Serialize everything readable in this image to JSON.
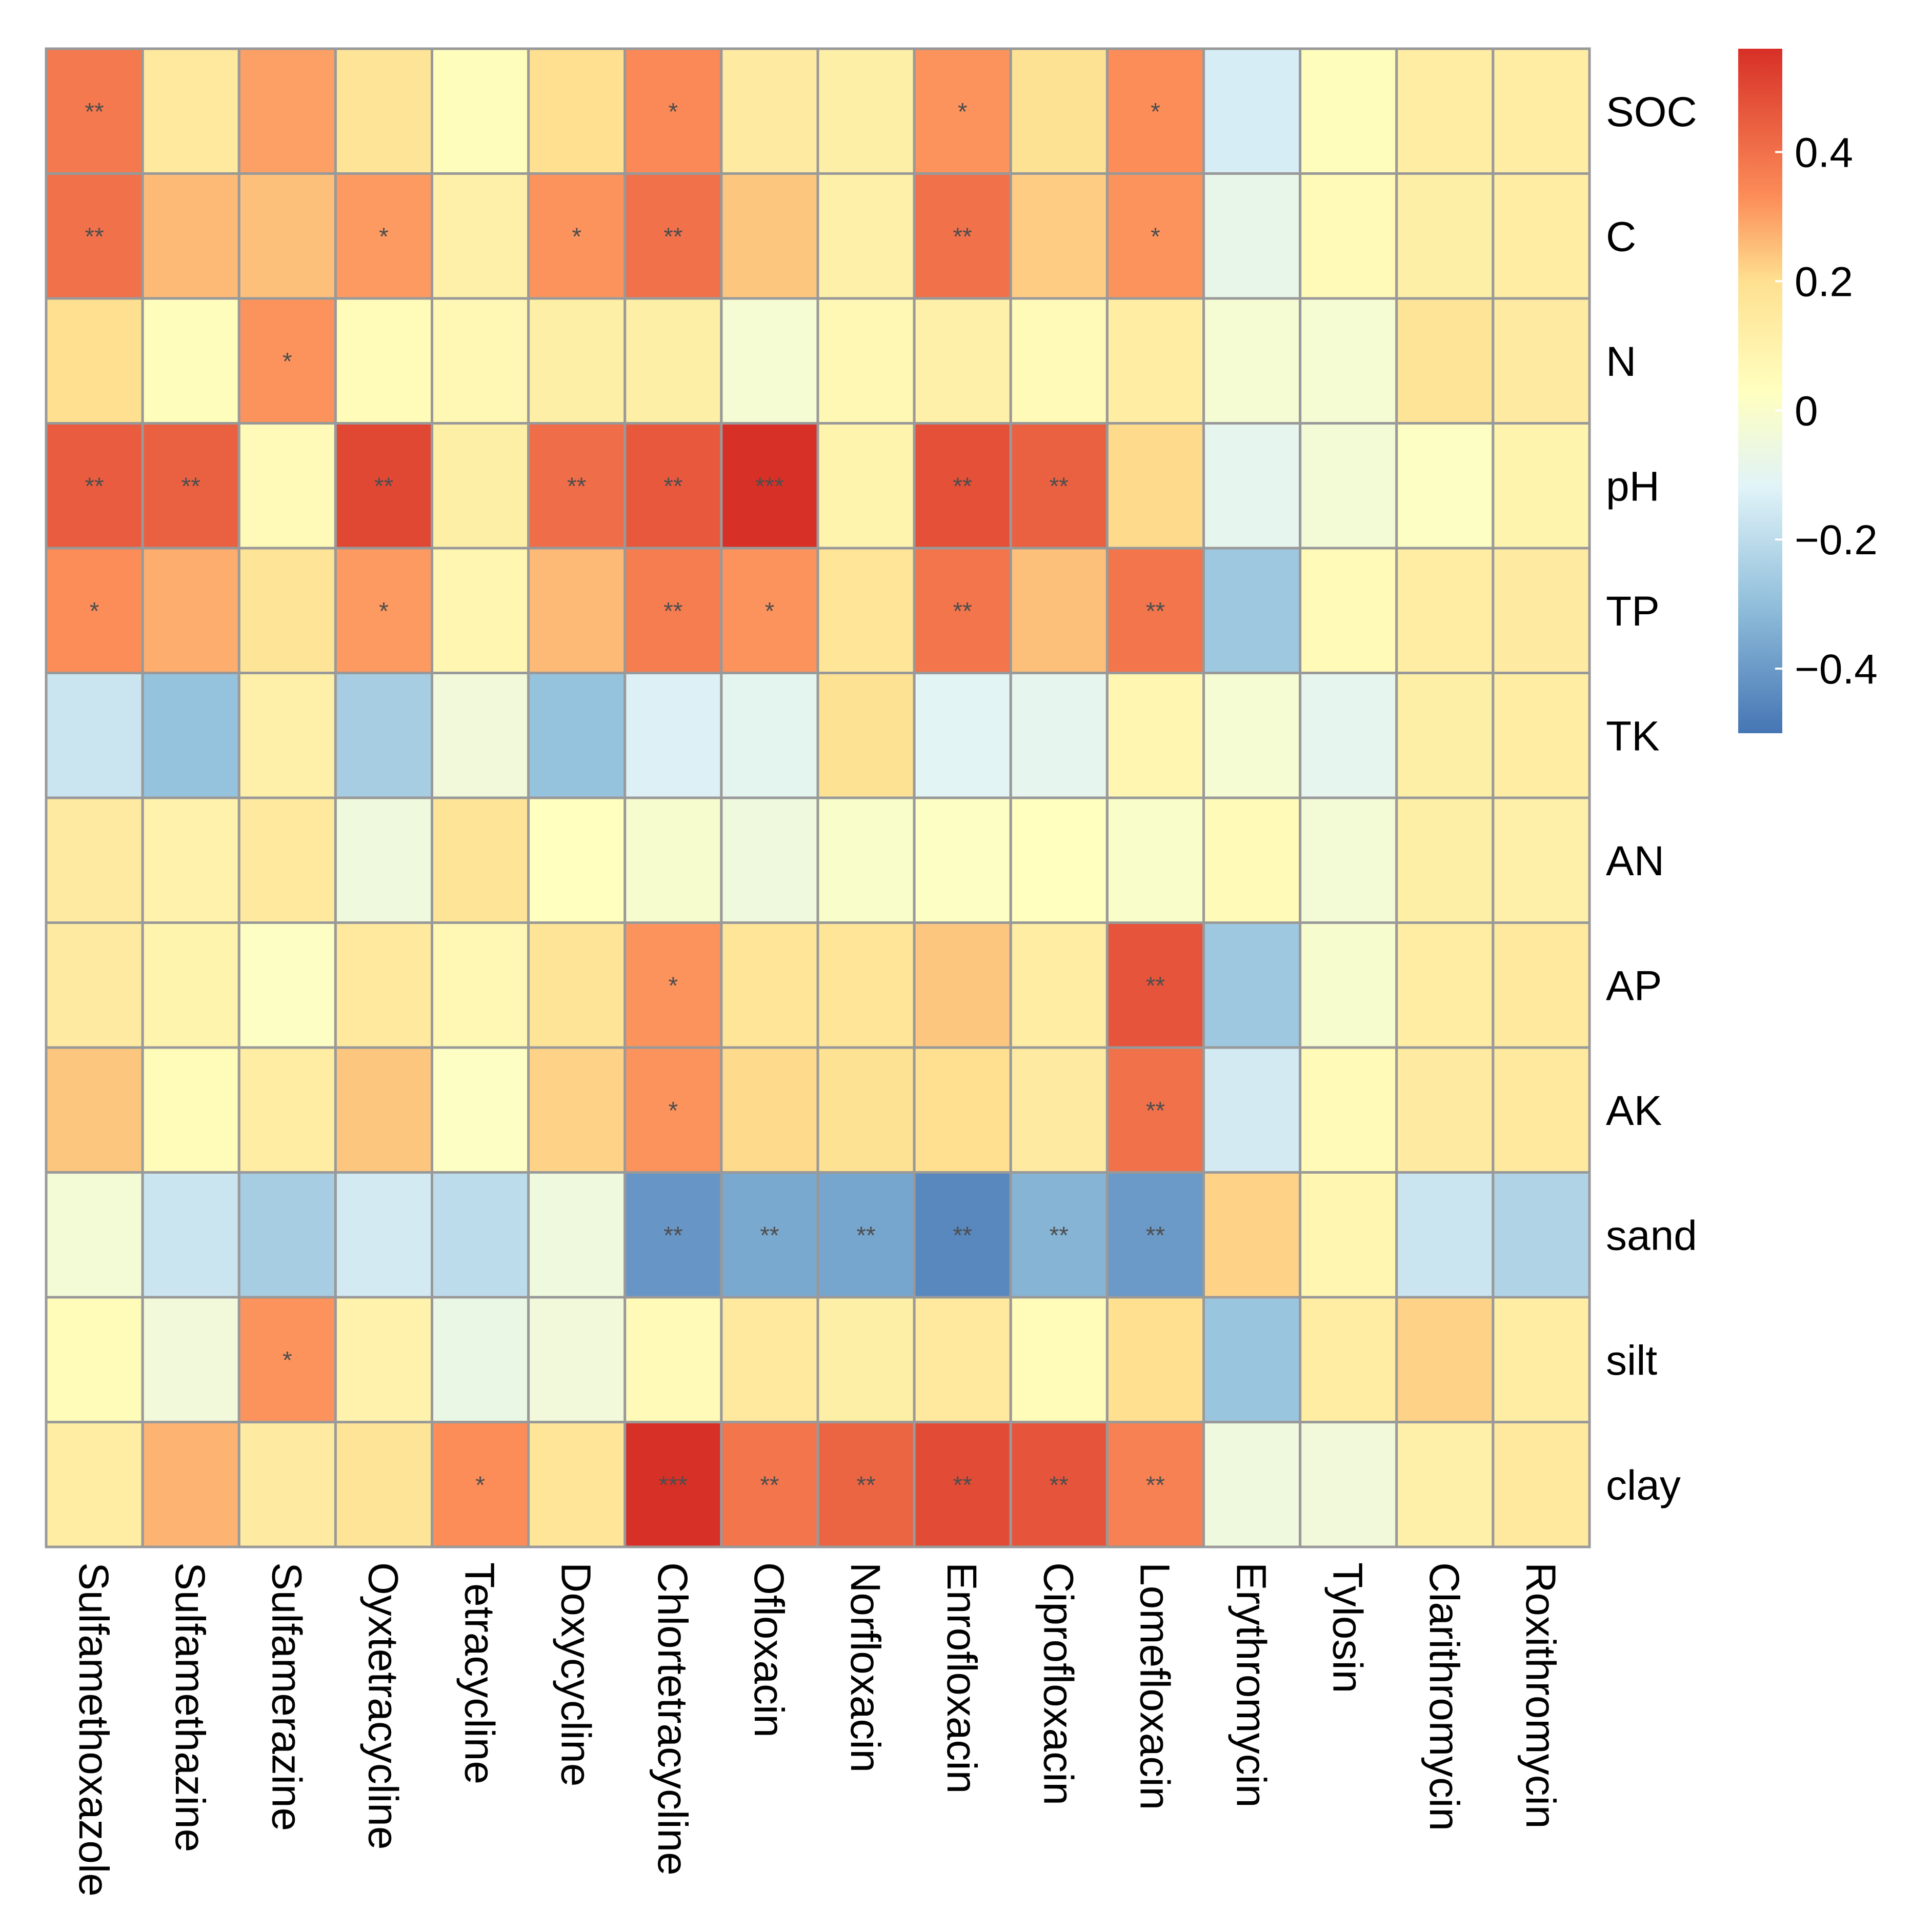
{
  "chart_data": {
    "type": "heatmap",
    "title": "",
    "rows": [
      "SOC",
      "C",
      "N",
      "pH",
      "TP",
      "TK",
      "AN",
      "AP",
      "AK",
      "sand",
      "silt",
      "clay"
    ],
    "columns": [
      "Sulfamethoxazole",
      "Sulfamethazine",
      "Sulfamerazine",
      "Oyxtetracycline",
      "Tetracycline",
      "Doxycycline",
      "Chlortetracycline",
      "Ofloxacin",
      "Norfloxacin",
      "Enrofloxacin",
      "Ciprofloxacin",
      "Lomefloxacin",
      "Erythromycin",
      "Tylosin",
      "Clarithromycin",
      "Roxithromycin"
    ],
    "values": [
      [
        0.38,
        0.15,
        0.3,
        0.18,
        0.04,
        0.2,
        0.34,
        0.14,
        0.12,
        0.32,
        0.19,
        0.33,
        -0.14,
        0.04,
        0.13,
        0.13
      ],
      [
        0.4,
        0.26,
        0.25,
        0.31,
        0.11,
        0.32,
        0.4,
        0.24,
        0.11,
        0.4,
        0.23,
        0.32,
        -0.08,
        0.06,
        0.12,
        0.13
      ],
      [
        0.2,
        0.04,
        0.32,
        0.05,
        0.07,
        0.12,
        0.12,
        -0.02,
        0.07,
        0.11,
        0.06,
        0.13,
        -0.02,
        -0.02,
        0.18,
        0.14
      ],
      [
        0.45,
        0.44,
        0.06,
        0.5,
        0.12,
        0.41,
        0.46,
        0.56,
        0.09,
        0.48,
        0.44,
        0.21,
        -0.09,
        -0.03,
        0.02,
        0.09
      ],
      [
        0.33,
        0.28,
        0.18,
        0.31,
        0.08,
        0.26,
        0.37,
        0.32,
        0.17,
        0.39,
        0.25,
        0.39,
        -0.27,
        0.06,
        0.13,
        0.14
      ],
      [
        -0.17,
        -0.29,
        0.11,
        -0.25,
        -0.04,
        -0.29,
        -0.13,
        -0.1,
        0.19,
        -0.11,
        -0.09,
        0.08,
        -0.02,
        -0.09,
        0.12,
        0.13
      ],
      [
        0.14,
        0.1,
        0.15,
        -0.05,
        0.18,
        0.03,
        -0.01,
        -0.05,
        0.0,
        0.02,
        0.03,
        0.0,
        0.06,
        -0.03,
        0.12,
        0.11
      ],
      [
        0.14,
        0.09,
        0.02,
        0.15,
        0.07,
        0.18,
        0.32,
        0.17,
        0.17,
        0.24,
        0.13,
        0.47,
        -0.27,
        -0.01,
        0.13,
        0.15
      ],
      [
        0.24,
        0.05,
        0.13,
        0.24,
        0.02,
        0.22,
        0.32,
        0.21,
        0.19,
        0.2,
        0.14,
        0.4,
        -0.15,
        0.06,
        0.14,
        0.15
      ],
      [
        -0.03,
        -0.17,
        -0.25,
        -0.15,
        -0.2,
        -0.05,
        -0.41,
        -0.36,
        -0.37,
        -0.45,
        -0.33,
        -0.4,
        0.22,
        0.08,
        -0.17,
        -0.23
      ],
      [
        0.05,
        -0.04,
        0.32,
        0.1,
        -0.07,
        -0.04,
        0.06,
        0.15,
        0.12,
        0.15,
        0.05,
        0.2,
        -0.28,
        0.13,
        0.22,
        0.13
      ],
      [
        0.13,
        0.27,
        0.14,
        0.18,
        0.33,
        0.17,
        0.56,
        0.39,
        0.43,
        0.49,
        0.47,
        0.36,
        -0.05,
        -0.04,
        0.11,
        0.15
      ]
    ],
    "significance": [
      [
        "**",
        "",
        "",
        "",
        "",
        "",
        "*",
        "",
        "",
        "*",
        "",
        "*",
        "",
        "",
        "",
        ""
      ],
      [
        "**",
        "",
        "",
        "*",
        "",
        "*",
        "**",
        "",
        "",
        "**",
        "",
        "*",
        "",
        "",
        "",
        ""
      ],
      [
        "",
        "",
        "*",
        "",
        "",
        "",
        "",
        "",
        "",
        "",
        "",
        "",
        "",
        "",
        "",
        ""
      ],
      [
        "**",
        "**",
        "",
        "**",
        "",
        "**",
        "**",
        "***",
        "",
        "**",
        "**",
        "",
        "",
        "",
        "",
        ""
      ],
      [
        "*",
        "",
        "",
        "*",
        "",
        "",
        "**",
        "*",
        "",
        "**",
        "",
        "**",
        "",
        "",
        "",
        ""
      ],
      [
        "",
        "",
        "",
        "",
        "",
        "",
        "",
        "",
        "",
        "",
        "",
        "",
        "",
        "",
        "",
        ""
      ],
      [
        "",
        "",
        "",
        "",
        "",
        "",
        "",
        "",
        "",
        "",
        "",
        "",
        "",
        "",
        "",
        ""
      ],
      [
        "",
        "",
        "",
        "",
        "",
        "",
        "*",
        "",
        "",
        "",
        "",
        "**",
        "",
        "",
        "",
        ""
      ],
      [
        "",
        "",
        "",
        "",
        "",
        "",
        "*",
        "",
        "",
        "",
        "",
        "**",
        "",
        "",
        "",
        ""
      ],
      [
        "",
        "",
        "",
        "",
        "",
        "",
        "**",
        "**",
        "**",
        "**",
        "**",
        "**",
        "",
        "",
        "",
        ""
      ],
      [
        "",
        "",
        "*",
        "",
        "",
        "",
        "",
        "",
        "",
        "",
        "",
        "",
        "",
        "",
        "",
        ""
      ],
      [
        "",
        "",
        "",
        "",
        "*",
        "",
        "***",
        "**",
        "**",
        "**",
        "**",
        "**",
        "",
        "",
        "",
        ""
      ]
    ],
    "color_scale": {
      "range": [
        -0.5,
        0.56
      ],
      "ticks": [
        0.4,
        0.2,
        0,
        -0.2,
        -0.4
      ],
      "tick_labels": [
        "0.4",
        "0.2",
        "0",
        "−0.2",
        "−0.4"
      ],
      "stops": [
        {
          "value": -0.5,
          "color": "#4575B4"
        },
        {
          "value": -0.3,
          "color": "#91BFDB"
        },
        {
          "value": -0.12,
          "color": "#E0F3F8"
        },
        {
          "value": 0.03,
          "color": "#FFFFBF"
        },
        {
          "value": 0.2,
          "color": "#FEE090"
        },
        {
          "value": 0.33,
          "color": "#FC8D59"
        },
        {
          "value": 0.56,
          "color": "#D73027"
        }
      ]
    },
    "legend_position": "top-right"
  }
}
